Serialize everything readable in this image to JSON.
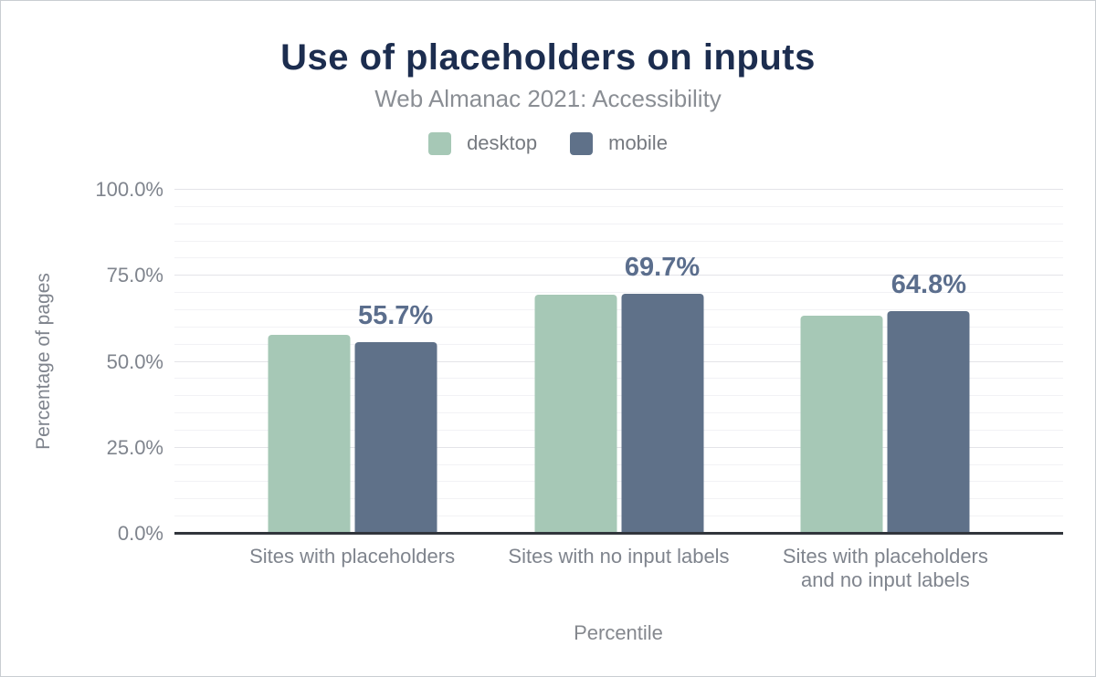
{
  "title": "Use of placeholders on inputs",
  "subtitle": "Web Almanac 2021: Accessibility",
  "legend": [
    {
      "label": "desktop",
      "color": "#a6c8b6"
    },
    {
      "label": "mobile",
      "color": "#5f7189"
    }
  ],
  "colors": {
    "title": "#1c2d4f",
    "subtitle": "#8a8e94",
    "axis_text": "#7f848d",
    "data_label": "#5b6e8d",
    "grid_major": "#e4e4e8",
    "grid_minor": "#f2f2f5",
    "axis_line": "#31353c",
    "desktop_bar": "#a6c8b6",
    "mobile_bar": "#5f7189"
  },
  "chart_data": {
    "type": "bar",
    "title": "Use of placeholders on inputs",
    "subtitle": "Web Almanac 2021: Accessibility",
    "xlabel": "Percentile",
    "ylabel": "Percentage of pages",
    "ylim": [
      0,
      100
    ],
    "grid": true,
    "minor_grid_step": 5,
    "legend_position": "top",
    "y_ticks": [
      {
        "value": 0,
        "label": "0.0%"
      },
      {
        "value": 25,
        "label": "25.0%"
      },
      {
        "value": 50,
        "label": "50.0%"
      },
      {
        "value": 75,
        "label": "75.0%"
      },
      {
        "value": 100,
        "label": "100.0%"
      }
    ],
    "categories": [
      "Sites with placeholders",
      "Sites with no input labels",
      "Sites with placeholders\nand no input labels"
    ],
    "group_centers_pct": [
      20,
      50,
      80
    ],
    "series": [
      {
        "name": "desktop",
        "color": "#a6c8b6",
        "values": [
          57.9,
          69.4,
          63.5
        ]
      },
      {
        "name": "mobile",
        "color": "#5f7189",
        "values": [
          55.7,
          69.7,
          64.8
        ]
      }
    ],
    "data_labels": {
      "series": "mobile",
      "values": [
        "55.7%",
        "69.7%",
        "64.8%"
      ]
    }
  }
}
